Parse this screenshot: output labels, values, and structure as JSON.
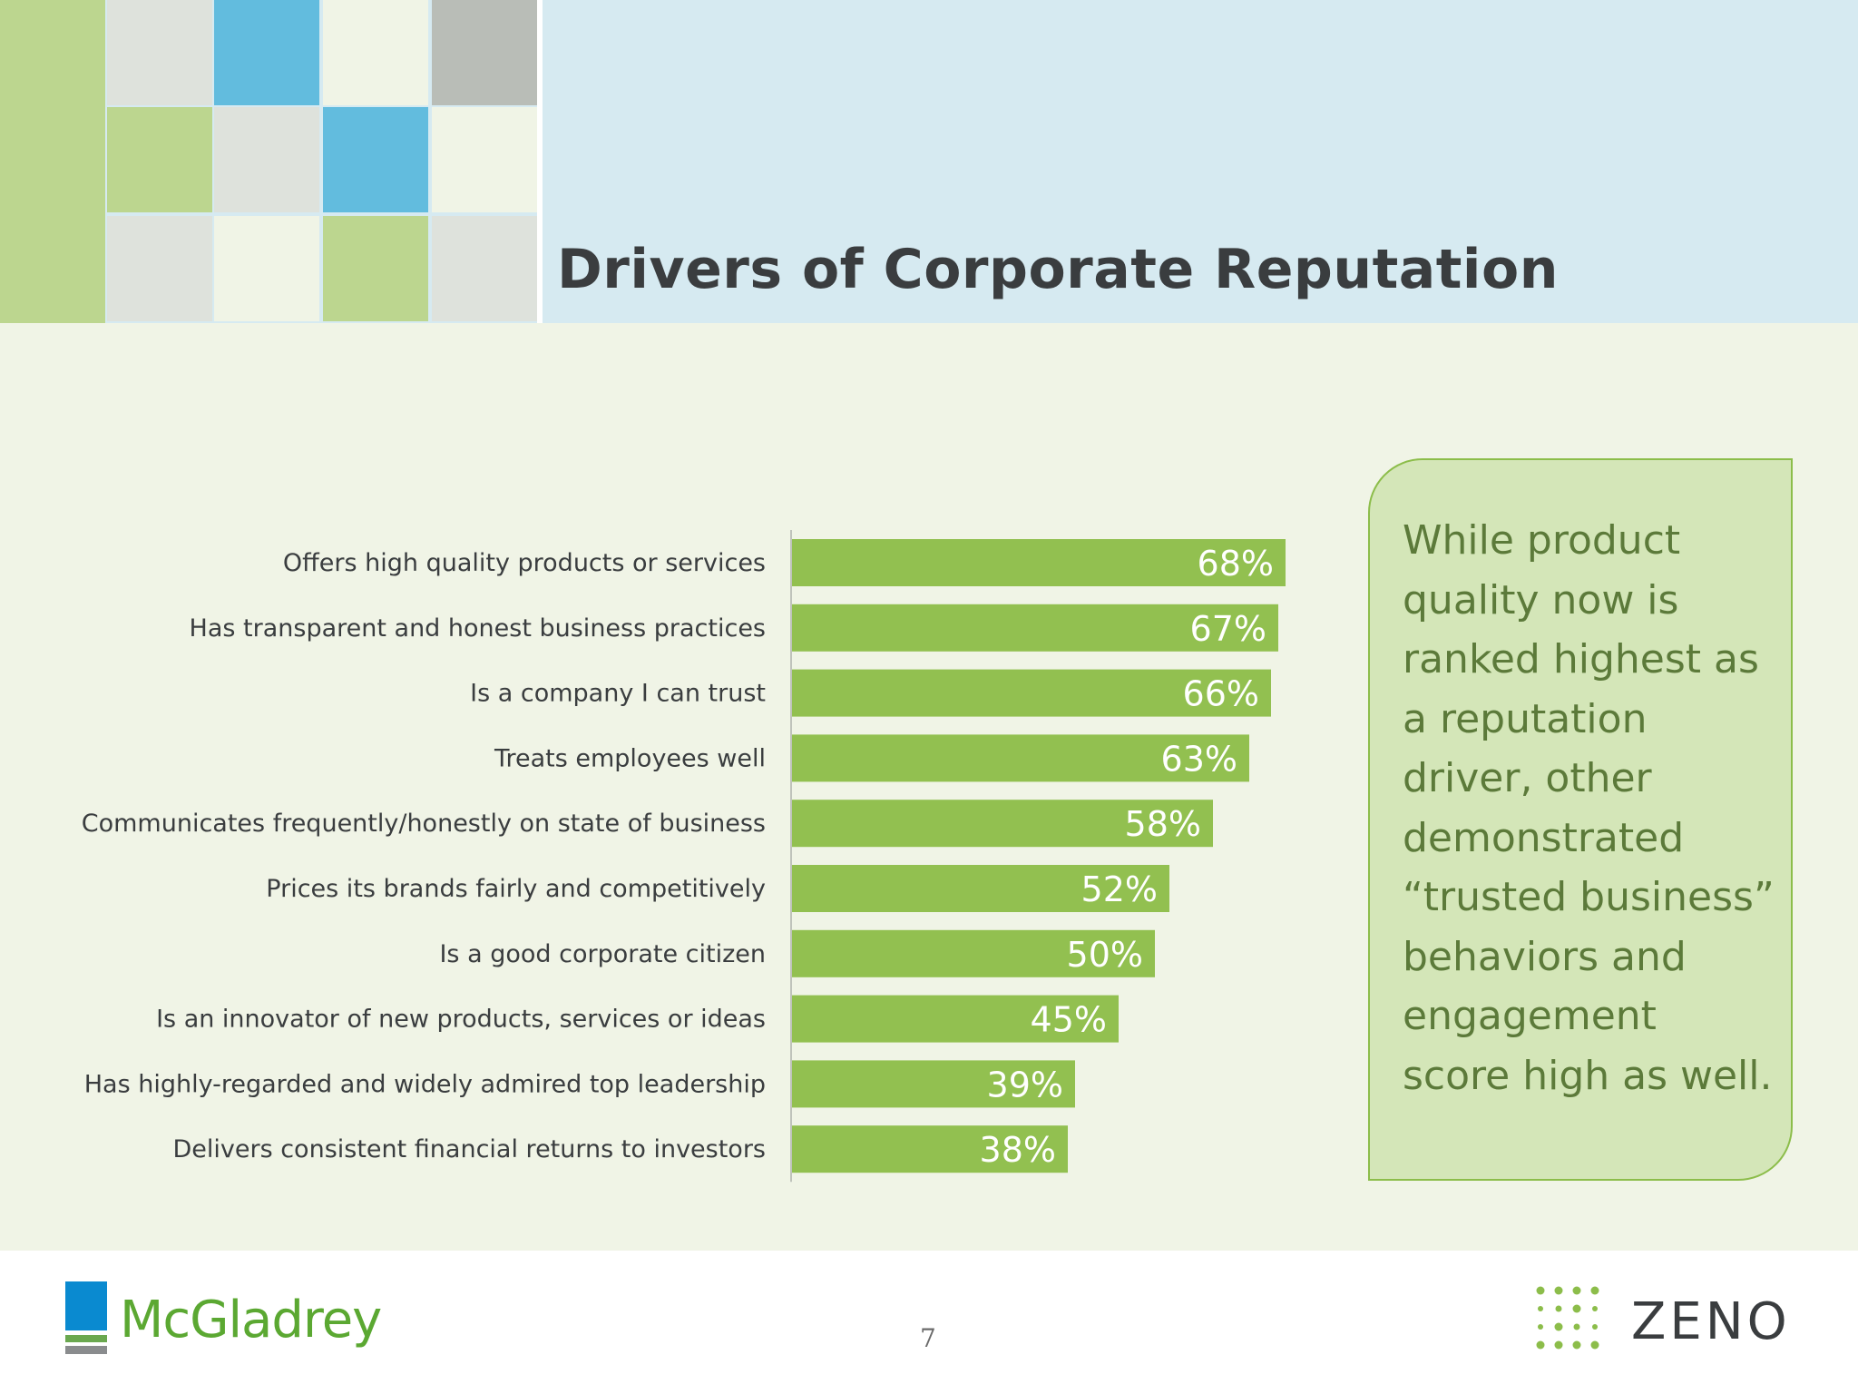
{
  "slide": {
    "title": "Drivers of Corporate Reputation",
    "page_number": "7"
  },
  "callout": {
    "text": "While product quality now is ranked highest as a reputation driver, other demonstrated “trusted business” behaviors and engagement score high as well."
  },
  "logos": {
    "left": "McGladrey",
    "right": "ZENO"
  },
  "colors": {
    "bar": "#92c050",
    "header_band": "#d6eaf1",
    "background": "#f0f4e6",
    "callout_fill": "#d4e6b8",
    "callout_border": "#8cbd4a"
  },
  "chart_data": {
    "type": "bar",
    "orientation": "horizontal",
    "categories": [
      "Offers high quality products or services",
      "Has transparent and honest business practices",
      "Is a company I can trust",
      "Treats employees well",
      "Communicates frequently/honestly on state of business",
      "Prices its brands fairly and competitively",
      "Is a good corporate citizen",
      "Is an innovator of new products, services or ideas",
      "Has highly-regarded and widely admired top leadership",
      "Delivers consistent financial returns to investors"
    ],
    "values": [
      68,
      67,
      66,
      63,
      58,
      52,
      50,
      45,
      39,
      38
    ],
    "value_labels": [
      "68%",
      "67%",
      "66%",
      "63%",
      "58%",
      "52%",
      "50%",
      "45%",
      "39%",
      "38%"
    ],
    "title": "",
    "xlabel": "",
    "ylabel": "",
    "xlim": [
      0,
      100
    ],
    "grid": false,
    "legend": "none"
  }
}
